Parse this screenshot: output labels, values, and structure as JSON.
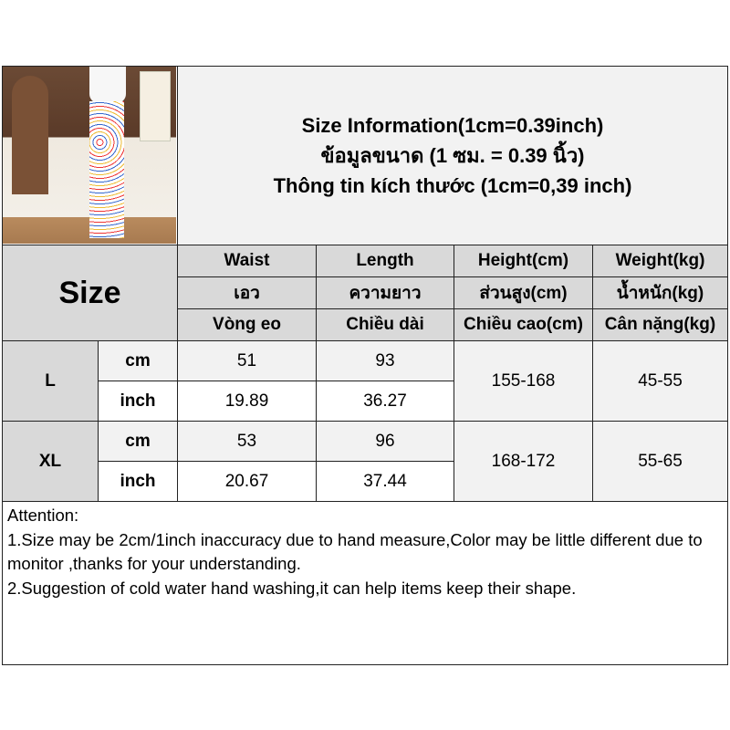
{
  "header": {
    "lines": [
      "Size Information(1cm=0.39inch)",
      "ข้อมูลขนาด (1 ซม. = 0.39 นิ้ว)",
      "Thông tin kích thước (1cm=0,39 inch)"
    ]
  },
  "photo": {
    "description_icon": "product-photo"
  },
  "table": {
    "size_label": "Size",
    "columns": [
      {
        "en": "Waist",
        "th": "เอว",
        "vi": "Vòng eo"
      },
      {
        "en": "Length",
        "th": "ความยาว",
        "vi": "Chiều dài"
      },
      {
        "en": "Height(cm)",
        "th": "ส่วนสูง(cm)",
        "vi": "Chiều cao(cm)"
      },
      {
        "en": "Weight(kg)",
        "th": "น้ำหนัก(kg)",
        "vi": "Cân nặng(kg)"
      }
    ],
    "rows": [
      {
        "size": "L",
        "cm_label": "cm",
        "inch_label": "inch",
        "waist_cm": "51",
        "length_cm": "93",
        "waist_inch": "19.89",
        "length_inch": "36.27",
        "height": "155-168",
        "weight": "45-55"
      },
      {
        "size": "XL",
        "cm_label": "cm",
        "inch_label": "inch",
        "waist_cm": "53",
        "length_cm": "96",
        "waist_inch": "20.67",
        "length_inch": "37.44",
        "height": "168-172",
        "weight": "55-65"
      }
    ]
  },
  "attention": {
    "title": "Attention:",
    "line1": "1.Size may be 2cm/1inch inaccuracy due to hand measure,Color may be little different due to monitor ,thanks for your understanding.",
    "line2": "2.Suggestion of cold water hand washing,it can help items keep their shape."
  },
  "colors": {
    "header_gray": "#d9d9d9",
    "light_gray": "#f2f2f2",
    "border": "#222222"
  }
}
